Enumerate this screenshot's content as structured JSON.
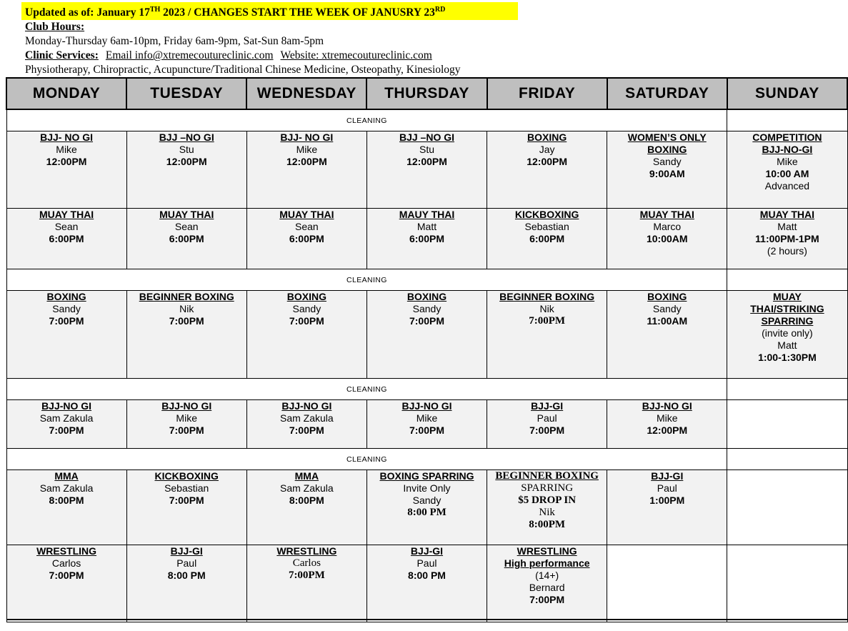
{
  "colors": {
    "highlight_yellow": "#ffff00",
    "day_header_gray": "#bfbfbf",
    "class_cell_gray": "#f2f2f2",
    "border_black": "#000000"
  },
  "header": {
    "updated_prefix": "Updated as of: January 17",
    "updated_sup1": "TH",
    "updated_mid": " 2023 / CHANGES START THE WEEK OF JANUSRY 23",
    "updated_sup2": "RD",
    "club_hours_label": "Club Hours:",
    "club_hours_value": "Monday-Thursday 6am-10pm, Friday 6am-9pm, Sat-Sun 8am-5pm",
    "clinic_services_label": "Clinic Services:",
    "clinic_email": "Email info@xtremecoutureclinic.com",
    "clinic_website": "Website: xtremecoutureclinic.com",
    "clinic_disciplines": "Physiotherapy, Chiropractic, Acupuncture/Traditional Chinese Medicine, Osteopathy, Kinesiology"
  },
  "table": {
    "days": [
      "MONDAY",
      "TUESDAY",
      "WEDNESDAY",
      "THURSDAY",
      "FRIDAY",
      "SATURDAY",
      "SUNDAY"
    ],
    "cleaning_label": "CLEANING",
    "rows": [
      {
        "type": "cleaning"
      },
      {
        "type": "classes",
        "cells": [
          {
            "lines": [
              {
                "t": "BJJ- NO GI",
                "s": "title"
              },
              {
                "t": "Mike",
                "s": "name"
              },
              {
                "t": "12:00PM",
                "s": "time"
              }
            ]
          },
          {
            "lines": [
              {
                "t": "BJJ –NO GI",
                "s": "title"
              },
              {
                "t": "Stu",
                "s": "name"
              },
              {
                "t": "12:00PM",
                "s": "time"
              }
            ]
          },
          {
            "lines": [
              {
                "t": "BJJ- NO GI",
                "s": "title"
              },
              {
                "t": "Mike",
                "s": "name"
              },
              {
                "t": "12:00PM",
                "s": "time"
              }
            ]
          },
          {
            "lines": [
              {
                "t": "BJJ –NO GI",
                "s": "title"
              },
              {
                "t": "Stu",
                "s": "name"
              },
              {
                "t": "12:00PM",
                "s": "time"
              }
            ]
          },
          {
            "lines": [
              {
                "t": "BOXING",
                "s": "title"
              },
              {
                "t": "Jay",
                "s": "name"
              },
              {
                "t": "12:00PM",
                "s": "time"
              }
            ]
          },
          {
            "lines": [
              {
                "t": "WOMEN’S ONLY",
                "s": "title"
              },
              {
                "t": "BOXING",
                "s": "title"
              },
              {
                "t": "Sandy",
                "s": "name"
              },
              {
                "t": "9:00AM",
                "s": "time"
              }
            ]
          },
          {
            "lines": [
              {
                "t": "COMPETITION",
                "s": "title"
              },
              {
                "t": "BJJ-NO-GI",
                "s": "title"
              },
              {
                "t": "Mike",
                "s": "name"
              },
              {
                "t": "10:00 AM",
                "s": "time"
              },
              {
                "t": "Advanced",
                "s": "name"
              }
            ]
          }
        ]
      },
      {
        "type": "classes",
        "cells": [
          {
            "lines": [
              {
                "t": "MUAY THAI",
                "s": "title"
              },
              {
                "t": "Sean",
                "s": "name"
              },
              {
                "t": "6:00PM",
                "s": "time"
              }
            ]
          },
          {
            "lines": [
              {
                "t": "MUAY THAI",
                "s": "title"
              },
              {
                "t": "Sean",
                "s": "name"
              },
              {
                "t": "6:00PM",
                "s": "time"
              }
            ]
          },
          {
            "lines": [
              {
                "t": "MUAY THAI",
                "s": "title"
              },
              {
                "t": "Sean",
                "s": "name"
              },
              {
                "t": "6:00PM",
                "s": "time"
              }
            ]
          },
          {
            "lines": [
              {
                "t": "MAUY THAI",
                "s": "title"
              },
              {
                "t": "Matt",
                "s": "name"
              },
              {
                "t": "6:00PM",
                "s": "time"
              }
            ]
          },
          {
            "lines": [
              {
                "t": "KICKBOXING",
                "s": "title"
              },
              {
                "t": "Sebastian",
                "s": "name"
              },
              {
                "t": "6:00PM",
                "s": "time"
              }
            ]
          },
          {
            "lines": [
              {
                "t": "MUAY THAI",
                "s": "title"
              },
              {
                "t": "Marco",
                "s": "name"
              },
              {
                "t": "10:00AM",
                "s": "time"
              }
            ]
          },
          {
            "lines": [
              {
                "t": "MUAY THAI",
                "s": "title"
              },
              {
                "t": "Matt",
                "s": "name"
              },
              {
                "t": "11:00PM-1PM",
                "s": "time"
              },
              {
                "t": "(2 hours)",
                "s": "name"
              }
            ]
          }
        ]
      },
      {
        "type": "cleaning"
      },
      {
        "type": "classes",
        "cells": [
          {
            "lines": [
              {
                "t": "BOXING",
                "s": "title"
              },
              {
                "t": "Sandy",
                "s": "name"
              },
              {
                "t": "7:00PM",
                "s": "time"
              }
            ]
          },
          {
            "lines": [
              {
                "t": "BEGINNER BOXING",
                "s": "title"
              },
              {
                "t": "Nik",
                "s": "name"
              },
              {
                "t": "7:00PM",
                "s": "time"
              }
            ]
          },
          {
            "lines": [
              {
                "t": "BOXING",
                "s": "title"
              },
              {
                "t": "Sandy",
                "s": "name"
              },
              {
                "t": "7:00PM",
                "s": "time"
              }
            ]
          },
          {
            "lines": [
              {
                "t": "BOXING",
                "s": "title"
              },
              {
                "t": "Sandy",
                "s": "name"
              },
              {
                "t": "7:00PM",
                "s": "time"
              }
            ]
          },
          {
            "lines": [
              {
                "t": "BEGINNER BOXING",
                "s": "title"
              },
              {
                "t": "Nik",
                "s": "name"
              },
              {
                "t": "7:00PM",
                "s": "time-serif"
              }
            ]
          },
          {
            "lines": [
              {
                "t": "BOXING",
                "s": "title"
              },
              {
                "t": "Sandy",
                "s": "name"
              },
              {
                "t": "11:00AM",
                "s": "time"
              }
            ]
          },
          {
            "lines": [
              {
                "t": "MUAY",
                "s": "title"
              },
              {
                "t": "THAI/STRIKING",
                "s": "title"
              },
              {
                "t": "SPARRING",
                "s": "title"
              },
              {
                "t": "(invite only)",
                "s": "name"
              },
              {
                "t": "Matt",
                "s": "name"
              },
              {
                "t": "1:00-1:30PM",
                "s": "time"
              }
            ]
          }
        ]
      },
      {
        "type": "cleaning"
      },
      {
        "type": "classes",
        "cells": [
          {
            "lines": [
              {
                "t": "BJJ-NO GI",
                "s": "title"
              },
              {
                "t": "Sam Zakula",
                "s": "name"
              },
              {
                "t": "7:00PM",
                "s": "time"
              }
            ]
          },
          {
            "lines": [
              {
                "t": "BJJ-NO GI",
                "s": "title"
              },
              {
                "t": "Mike",
                "s": "name"
              },
              {
                "t": "7:00PM",
                "s": "time"
              }
            ]
          },
          {
            "lines": [
              {
                "t": "BJJ-NO GI",
                "s": "title"
              },
              {
                "t": "Sam Zakula",
                "s": "name"
              },
              {
                "t": "7:00PM",
                "s": "time"
              }
            ]
          },
          {
            "lines": [
              {
                "t": "BJJ-NO GI",
                "s": "title"
              },
              {
                "t": "Mike",
                "s": "name"
              },
              {
                "t": "7:00PM",
                "s": "time"
              }
            ]
          },
          {
            "lines": [
              {
                "t": "BJJ-GI",
                "s": "title"
              },
              {
                "t": "Paul",
                "s": "name"
              },
              {
                "t": "7:00PM",
                "s": "time"
              }
            ]
          },
          {
            "lines": [
              {
                "t": "BJJ-NO GI",
                "s": "title"
              },
              {
                "t": "Mike",
                "s": "name"
              },
              {
                "t": "12:00PM",
                "s": "time"
              }
            ]
          },
          null
        ]
      },
      {
        "type": "cleaning"
      },
      {
        "type": "classes",
        "cells": [
          {
            "lines": [
              {
                "t": "MMA",
                "s": "title"
              },
              {
                "t": "Sam Zakula",
                "s": "name"
              },
              {
                "t": "8:00PM",
                "s": "time"
              }
            ]
          },
          {
            "lines": [
              {
                "t": "KICKBOXING",
                "s": "title"
              },
              {
                "t": "Sebastian",
                "s": "name"
              },
              {
                "t": "7:00PM",
                "s": "time"
              }
            ]
          },
          {
            "lines": [
              {
                "t": "MMA",
                "s": "title"
              },
              {
                "t": "Sam Zakula",
                "s": "name"
              },
              {
                "t": "8:00PM",
                "s": "time"
              }
            ]
          },
          {
            "lines": [
              {
                "t": "BOXING SPARRING",
                "s": "title"
              },
              {
                "t": "Invite Only",
                "s": "name"
              },
              {
                "t": "Sandy",
                "s": "name"
              },
              {
                "t": "8:00 PM",
                "s": "time-serif"
              }
            ]
          },
          {
            "lines": [
              {
                "t": "BEGINNER BOXING",
                "s": "title-serif"
              },
              {
                "t": "SPARRING",
                "s": "name-serif"
              },
              {
                "t": "$5 DROP IN",
                "s": "time-serif"
              },
              {
                "t": "Nik",
                "s": "name-serif"
              },
              {
                "t": "8:00PM",
                "s": "time-serif"
              }
            ]
          },
          {
            "lines": [
              {
                "t": "BJJ-GI",
                "s": "title"
              },
              {
                "t": "Paul",
                "s": "name"
              },
              {
                "t": "1:00PM",
                "s": "time"
              }
            ]
          },
          null
        ]
      },
      {
        "type": "classes",
        "cells": [
          {
            "lines": [
              {
                "t": "WRESTLING",
                "s": "title"
              },
              {
                "t": "Carlos",
                "s": "name"
              },
              {
                "t": "7:00PM",
                "s": "time"
              }
            ]
          },
          {
            "lines": [
              {
                "t": "BJJ-GI",
                "s": "title"
              },
              {
                "t": "Paul",
                "s": "name"
              },
              {
                "t": "8:00 PM",
                "s": "time"
              }
            ]
          },
          {
            "lines": [
              {
                "t": "WRESTLING",
                "s": "title"
              },
              {
                "t": "Carlos",
                "s": "name-serif"
              },
              {
                "t": "7:00PM",
                "s": "time-serif"
              }
            ]
          },
          {
            "lines": [
              {
                "t": "BJJ-GI",
                "s": "title"
              },
              {
                "t": "Paul",
                "s": "name"
              },
              {
                "t": "8:00 PM",
                "s": "time"
              }
            ]
          },
          {
            "lines": [
              {
                "t": "WRESTLING",
                "s": "title"
              },
              {
                "t": "High performance",
                "s": "title"
              },
              {
                "t": "(14+)",
                "s": "name"
              },
              {
                "t": "Bernard",
                "s": "name"
              },
              {
                "t": "7:00PM",
                "s": "time"
              }
            ]
          },
          null,
          null
        ]
      },
      {
        "type": "partial"
      }
    ]
  }
}
